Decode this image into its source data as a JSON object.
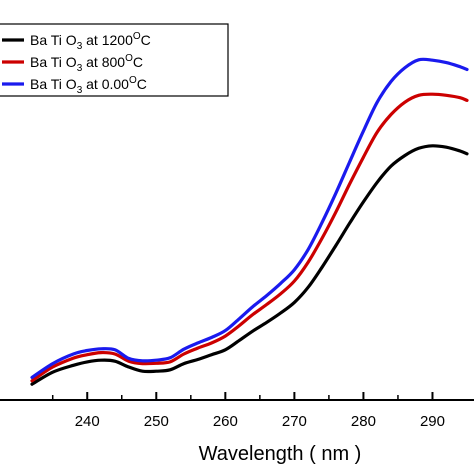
{
  "chart_data": {
    "type": "line",
    "xlabel": "Wavelength ( nm )",
    "ylabel": "",
    "xlim": [
      232,
      295
    ],
    "ylim": [
      0,
      100
    ],
    "xticks": [
      240,
      250,
      260,
      270,
      280,
      290
    ],
    "xtick_labels": [
      "240",
      "250",
      "260",
      "270",
      "280",
      "290"
    ],
    "legend_position": "top-left",
    "series": [
      {
        "name": "Ba Ti O3 at 1200°C",
        "legend": {
          "prefix": "Ba Ti O",
          "sub": "3",
          "middle": " at 1200",
          "sup": "O",
          "suffix": "C"
        },
        "color": "#000000",
        "x": [
          232,
          235,
          238,
          240,
          242,
          244,
          246,
          248,
          250,
          252,
          254,
          256,
          258,
          260,
          262,
          264,
          266,
          268,
          270,
          272,
          274,
          276,
          278,
          280,
          282,
          284,
          286,
          288,
          290,
          292,
          294,
          295
        ],
        "y": [
          4,
          7.5,
          9.5,
          10.5,
          11,
          10.7,
          9,
          7.8,
          7.8,
          8.2,
          10,
          11.2,
          12.6,
          14,
          16.7,
          19.5,
          22,
          24.7,
          27.8,
          32.2,
          38,
          44.3,
          50.8,
          57,
          62.7,
          67.4,
          70.5,
          72.6,
          73.3,
          72.9,
          71.8,
          71
        ]
      },
      {
        "name": "Ba Ti O3 at 800°C",
        "legend": {
          "prefix": "Ba Ti O",
          "sub": "3",
          "middle": " at  800",
          "sup": "O",
          "suffix": "C"
        },
        "color": "#cc0000",
        "x": [
          232,
          235,
          238,
          240,
          242,
          244,
          246,
          248,
          250,
          252,
          254,
          256,
          258,
          260,
          262,
          264,
          266,
          268,
          270,
          272,
          274,
          276,
          278,
          280,
          282,
          284,
          286,
          288,
          290,
          292,
          294,
          295
        ],
        "y": [
          5,
          9,
          11.6,
          12.6,
          13.2,
          12.8,
          10.7,
          10,
          10.1,
          10.5,
          12.8,
          14.5,
          16,
          18,
          21,
          24.3,
          27.2,
          30.3,
          34,
          39.5,
          46.4,
          54,
          62.2,
          70,
          77.3,
          82.4,
          86,
          88,
          88.3,
          88,
          87.3,
          86.5
        ]
      },
      {
        "name": "Ba Ti O3 at 0.00°C",
        "legend": {
          "prefix": "Ba Ti O",
          "sub": "3",
          "middle": " at  0.00",
          "sup": "O",
          "suffix": "C"
        },
        "color": "#1a1aee",
        "x": [
          232,
          235,
          238,
          240,
          242,
          244,
          246,
          248,
          250,
          252,
          254,
          256,
          258,
          260,
          262,
          264,
          266,
          268,
          270,
          272,
          274,
          276,
          278,
          280,
          282,
          284,
          286,
          288,
          290,
          292,
          294,
          295
        ],
        "y": [
          6,
          10,
          12.8,
          13.8,
          14.3,
          14,
          11.5,
          10.8,
          11,
          11.7,
          14.2,
          16,
          17.6,
          19.6,
          23,
          26.6,
          29.8,
          33.3,
          37.3,
          43.2,
          51,
          59.5,
          68.6,
          77.6,
          86,
          92,
          96,
          98.3,
          98.2,
          97.5,
          96.3,
          95.5
        ]
      }
    ]
  }
}
